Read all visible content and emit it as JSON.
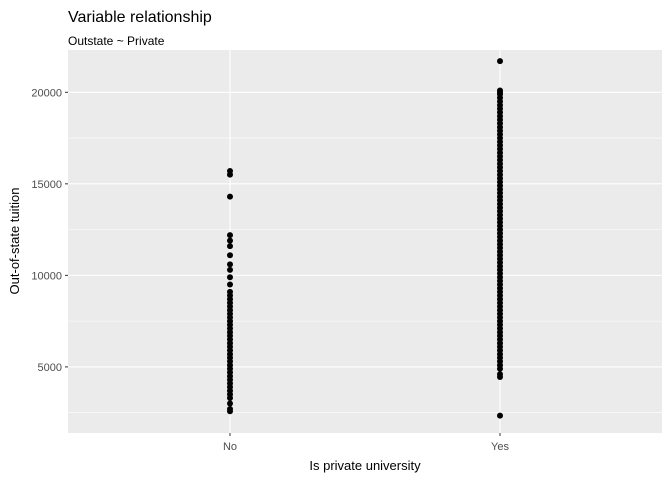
{
  "chart_data": {
    "type": "scatter",
    "title": "Variable relationship",
    "subtitle": "Outstate ~ Private",
    "xlabel": "Is private university",
    "ylabel": "Out-of-state tuition",
    "categories": [
      "No",
      "Yes"
    ],
    "ylim": [
      1390,
      22310
    ],
    "yticks": [
      5000,
      10000,
      15000,
      20000
    ],
    "grid": true,
    "colors": {
      "panel": "#ebebeb",
      "grid": "#ffffff",
      "point": "#000000"
    },
    "series": [
      {
        "category": "No",
        "values": [
          2580,
          2700,
          3000,
          3300,
          3500,
          3700,
          3900,
          4100,
          4300,
          4500,
          4700,
          4900,
          5100,
          5300,
          5500,
          5700,
          5900,
          6100,
          6300,
          6500,
          6700,
          6900,
          7100,
          7300,
          7500,
          7700,
          7900,
          8100,
          8300,
          8500,
          8700,
          8900,
          9100,
          9500,
          9900,
          10300,
          10600,
          11100,
          11600,
          11900,
          12200,
          14300,
          15500,
          15700
        ]
      },
      {
        "category": "Yes",
        "values": [
          2340,
          4450,
          4600,
          4900,
          5100,
          5300,
          5500,
          5700,
          5900,
          6100,
          6300,
          6500,
          6700,
          6900,
          7100,
          7300,
          7500,
          7700,
          7900,
          8100,
          8300,
          8500,
          8700,
          8900,
          9100,
          9300,
          9500,
          9700,
          9900,
          10100,
          10300,
          10500,
          10700,
          10900,
          11100,
          11300,
          11500,
          11700,
          11900,
          12100,
          12300,
          12500,
          12700,
          12900,
          13100,
          13300,
          13500,
          13700,
          13900,
          14100,
          14300,
          14500,
          14700,
          14900,
          15100,
          15300,
          15500,
          15700,
          15900,
          16100,
          16300,
          16500,
          16700,
          16900,
          17100,
          17300,
          17500,
          17700,
          17900,
          18100,
          18300,
          18500,
          18700,
          18900,
          19100,
          19300,
          19500,
          19700,
          19900,
          20000,
          20100,
          21700
        ]
      }
    ]
  }
}
